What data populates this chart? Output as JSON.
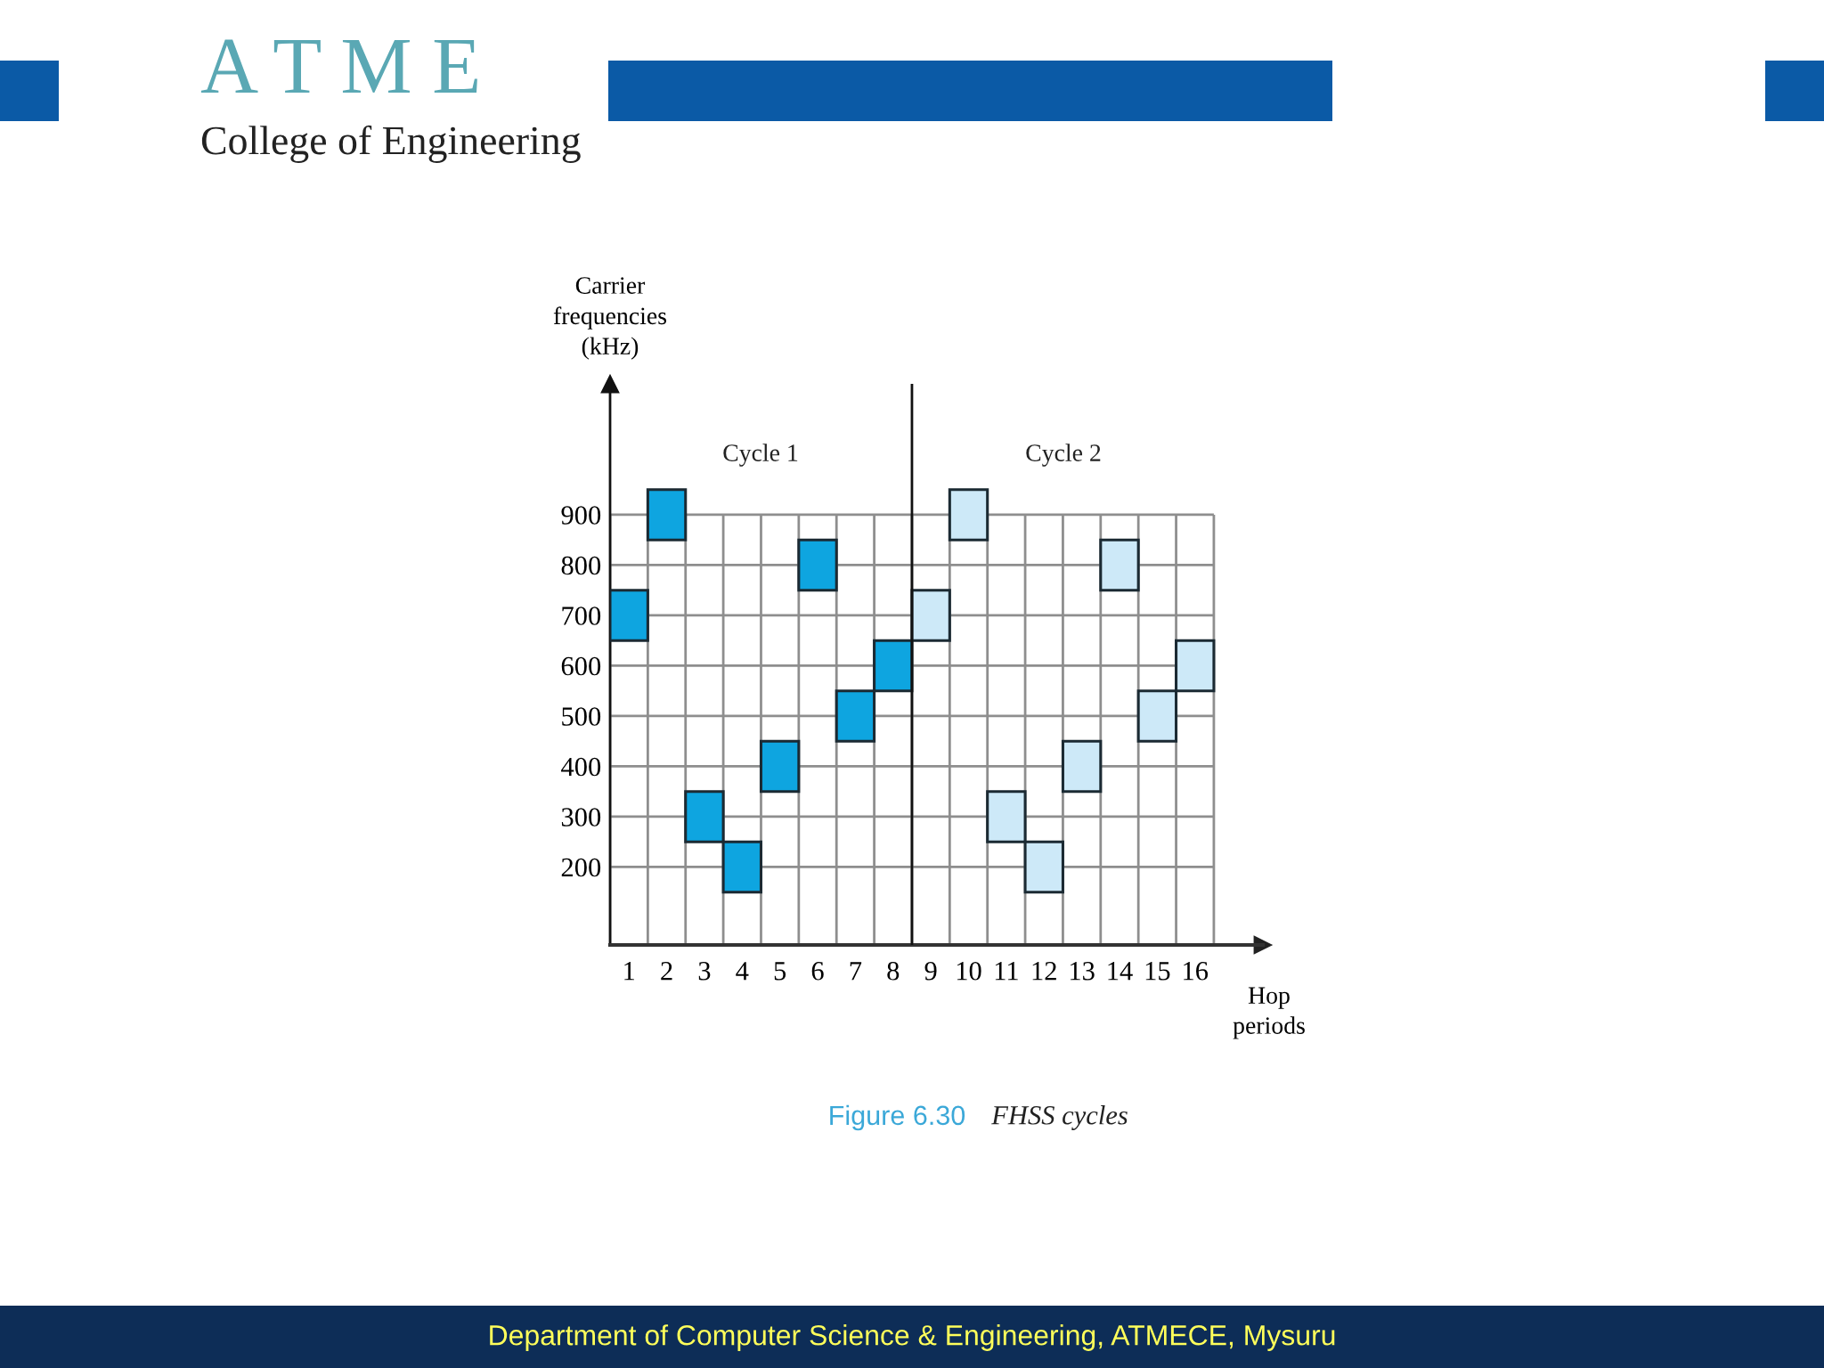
{
  "chart_data": {
    "type": "bar",
    "xlabel": "Hop\nperiods",
    "ylabel": "Carrier\nfrequencies\n(kHz)",
    "series": [
      {
        "color": "#0ea5e0",
        "x": [
          1,
          2,
          3,
          4,
          5,
          6,
          7,
          8
        ],
        "base": [
          650,
          850,
          250,
          150,
          350,
          750,
          450,
          550
        ],
        "values": [
          100,
          100,
          100,
          100,
          100,
          100,
          100,
          100
        ]
      },
      {
        "color": "#cde9f8",
        "x": [
          9,
          10,
          11,
          12,
          13,
          14,
          15,
          16
        ],
        "base": [
          650,
          850,
          250,
          150,
          350,
          750,
          450,
          550
        ],
        "values": [
          100,
          100,
          100,
          100,
          100,
          100,
          100,
          100
        ]
      }
    ],
    "xlim": [
      0.5,
      17.8
    ],
    "xticks": [
      {
        "value": 0.5,
        "label": null
      },
      1,
      {
        "value": 1.5,
        "label": null
      },
      2,
      {
        "value": 2.5,
        "label": null
      },
      3,
      {
        "value": 3.5,
        "label": null
      },
      4,
      {
        "value": 4.5,
        "label": null
      },
      5,
      {
        "value": 5.5,
        "label": null
      },
      6,
      {
        "value": 6.5,
        "label": null
      },
      7,
      {
        "value": 7.5,
        "label": null
      },
      8,
      {
        "value": 8.5,
        "label": null
      },
      9,
      {
        "value": 9.5,
        "label": null
      },
      10,
      {
        "value": 10.5,
        "label": null
      },
      11,
      {
        "value": 11.5,
        "label": null
      },
      12,
      {
        "value": 12.5,
        "label": null
      },
      13,
      {
        "value": 13.5,
        "label": null
      },
      14,
      {
        "value": 14.5,
        "label": null
      },
      15,
      {
        "value": 15.5,
        "label": null
      },
      16,
      {
        "value": 16.5,
        "label": null
      }
    ],
    "ylim": [
      45,
      1160
    ],
    "yticks": [
      200,
      300,
      400,
      500,
      600,
      700,
      800,
      900
    ],
    "grid": true,
    "ref_lines": [
      {
        "axis": "x",
        "value": 8.5,
        "color": "#111111"
      }
    ],
    "annotations": [
      "Cycle 1",
      "Cycle 2",
      "Figure 6.30",
      "FHSS cycles",
      "A T M E",
      "College of Engineering",
      "Department of Computer Science & Engineering, ATMECE, Mysuru"
    ]
  }
}
